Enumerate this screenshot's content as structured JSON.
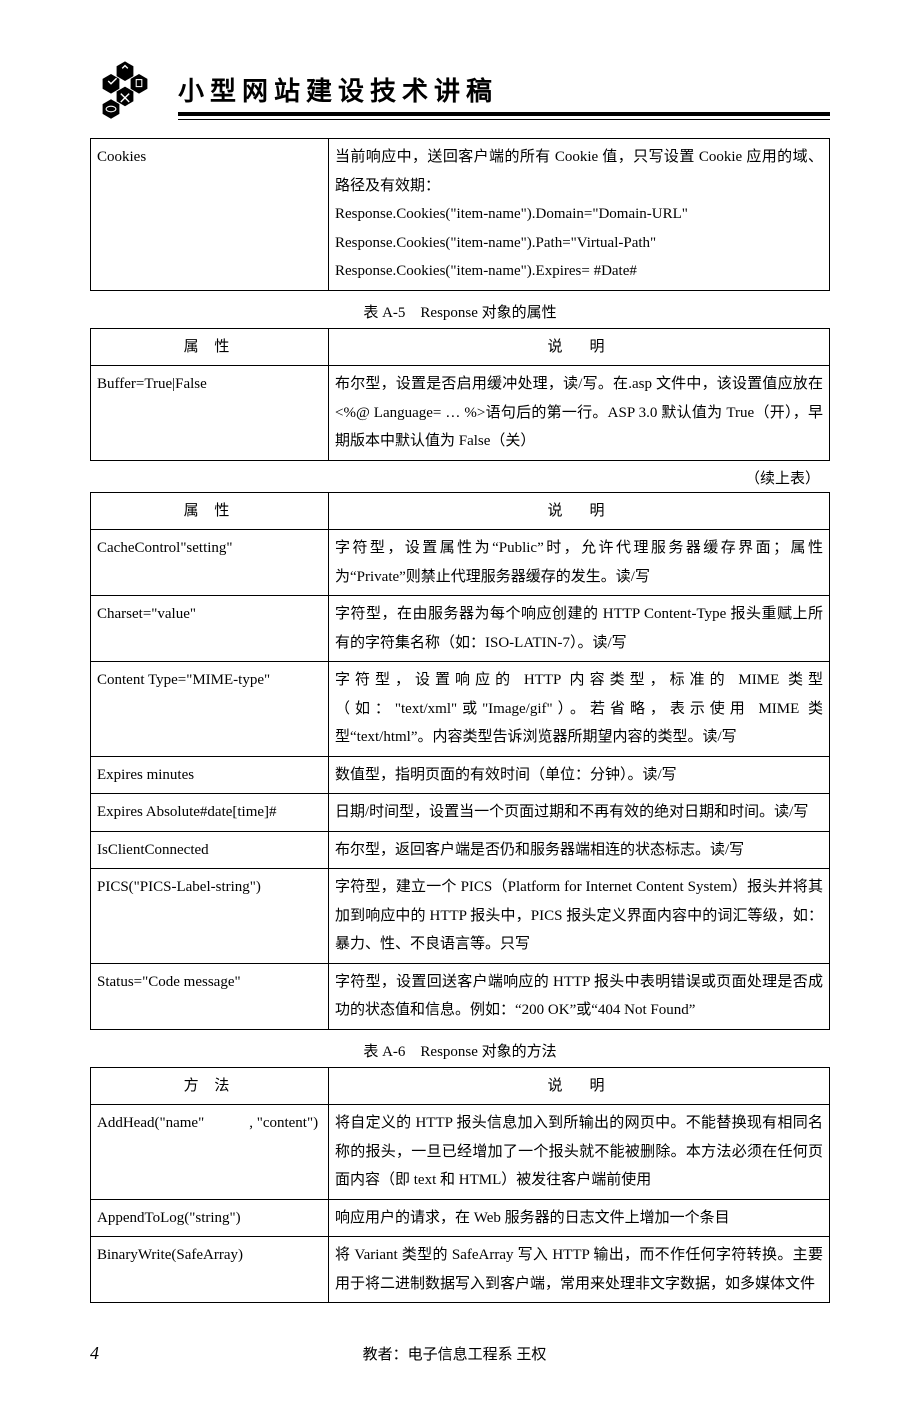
{
  "header": {
    "title": "小型网站建设技术讲稿"
  },
  "table0": {
    "rows": [
      {
        "prop": "Cookies",
        "desc": "当前响应中，送回客户端的所有 Cookie 值，只写设置 Cookie 应用的域、路径及有效期：\nResponse.Cookies(\"item-name\").Domain=\"Domain-URL\"\nResponse.Cookies(\"item-name\").Path=\"Virtual-Path\"\nResponse.Cookies(\"item-name\").Expires= #Date#"
      }
    ]
  },
  "caption1": "表 A-5　Response 对象的属性",
  "table1": {
    "header_left": "属 性",
    "header_right": "说　明",
    "rows": [
      {
        "prop": "Buffer=True|False",
        "desc": "布尔型，设置是否启用缓冲处理，读/写。在.asp 文件中，该设置值应放在<%@ Language= … %>语句后的第一行。ASP 3.0 默认值为 True（开），早期版本中默认值为 False（关）"
      }
    ]
  },
  "cont_label": "（续上表）",
  "table2": {
    "header_left": "属 性",
    "header_right": "说　明",
    "rows": [
      {
        "prop": "CacheControl\"setting\"",
        "desc": "字符型，设置属性为“Public”时，允许代理服务器缓存界面；属性为“Private”则禁止代理服务器缓存的发生。读/写"
      },
      {
        "prop": "Charset=\"value\"",
        "desc": "字符型，在由服务器为每个响应创建的 HTTP Content-Type 报头重赋上所有的字符集名称（如：ISO-LATIN-7）。读/写"
      },
      {
        "prop": "Content Type=\"MIME-type\"",
        "desc": "字符型，设置响应的 HTTP 内容类型，标准的 MIME 类型（如：\"text/xml\"或\"Image/gif\"）。若省略，表示使用 MIME 类型“text/html”。内容类型告诉浏览器所期望内容的类型。读/写"
      },
      {
        "prop": "Expires minutes",
        "desc": "数值型，指明页面的有效时间（单位：分钟）。读/写"
      },
      {
        "prop": "Expires Absolute#date[time]#",
        "desc": "日期/时间型，设置当一个页面过期和不再有效的绝对日期和时间。读/写"
      },
      {
        "prop": "IsClientConnected",
        "desc": "布尔型，返回客户端是否仍和服务器端相连的状态标志。读/写"
      },
      {
        "prop": "PICS(\"PICS-Label-string\")",
        "desc": "字符型，建立一个 PICS（Platform for Internet Content System）报头并将其加到响应中的 HTTP 报头中，PICS 报头定义界面内容中的词汇等级，如：暴力、性、不良语言等。只写"
      },
      {
        "prop": "Status=\"Code message\"",
        "desc": "字符型，设置回送客户端响应的 HTTP 报头中表明错误或页面处理是否成功的状态值和信息。例如：“200 OK”或“404 Not Found”"
      }
    ]
  },
  "caption2": "表 A-6　Response 对象的方法",
  "table3": {
    "header_left": "方 法",
    "header_right": "说　明",
    "rows": [
      {
        "prop": "AddHead(\"name\"　　　, \"content\")",
        "desc": "将自定义的 HTTP 报头信息加入到所输出的网页中。不能替换现有相同名称的报头，一旦已经增加了一个报头就不能被删除。本方法必须在任何页面内容（即 text 和 HTML）被发往客户端前使用"
      },
      {
        "prop": "AppendToLog(\"string\")",
        "desc": "响应用户的请求，在 Web 服务器的日志文件上增加一个条目"
      },
      {
        "prop": "BinaryWrite(SafeArray)",
        "desc": "将 Variant 类型的 SafeArray 写入 HTTP 输出，而不作任何字符转换。主要用于将二进制数据写入到客户端，常用来处理非文字数据，如多媒体文件"
      }
    ]
  },
  "footer": {
    "page": "4",
    "teacher": "教者：电子信息工程系 王权"
  }
}
